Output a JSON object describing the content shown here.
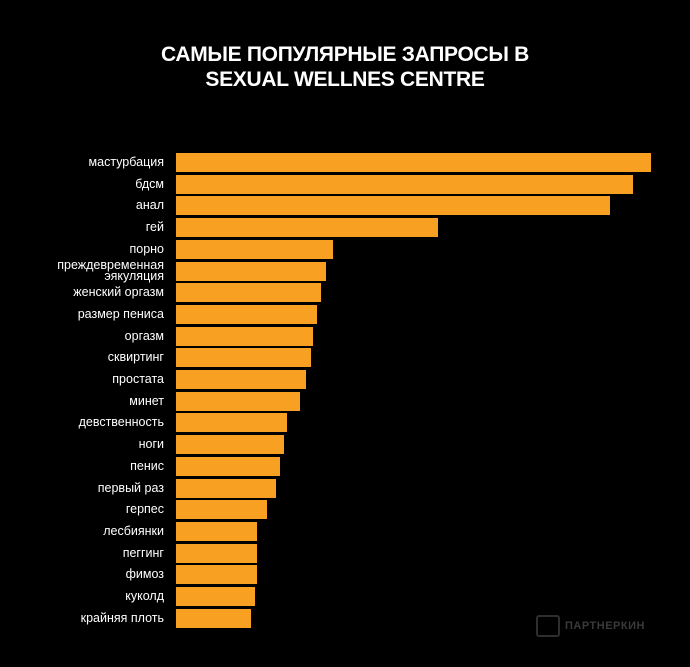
{
  "chart_data": {
    "type": "barh",
    "title": "САМЫЕ ПОПУЛЯРНЫЕ ЗАПРОСЫ В SEXUAL WELLNES CENTRE",
    "categories": [
      "мастурбация",
      "бдсм",
      "анал",
      "гей",
      "порно",
      "преждевременная эякуляция",
      "женский оргазм",
      "размер пениса",
      "оргазм",
      "сквиртинг",
      "простата",
      "минет",
      "девственность",
      "ноги",
      "пенис",
      "первый раз",
      "герпес",
      "лесбиянки",
      "пеггинг",
      "фимоз",
      "куколд",
      "крайняя плоть"
    ],
    "values": [
      100,
      96.2,
      91.4,
      55.2,
      33.1,
      31.6,
      30.5,
      29.7,
      28.8,
      28.4,
      27.4,
      26.1,
      23.4,
      22.7,
      21.9,
      21.1,
      19.2,
      17.1,
      17.1,
      17.1,
      16.6,
      15.8
    ],
    "color": "#f7a021",
    "xlim": [
      0,
      100
    ]
  },
  "watermark": "ПАРТНЕРКИН"
}
